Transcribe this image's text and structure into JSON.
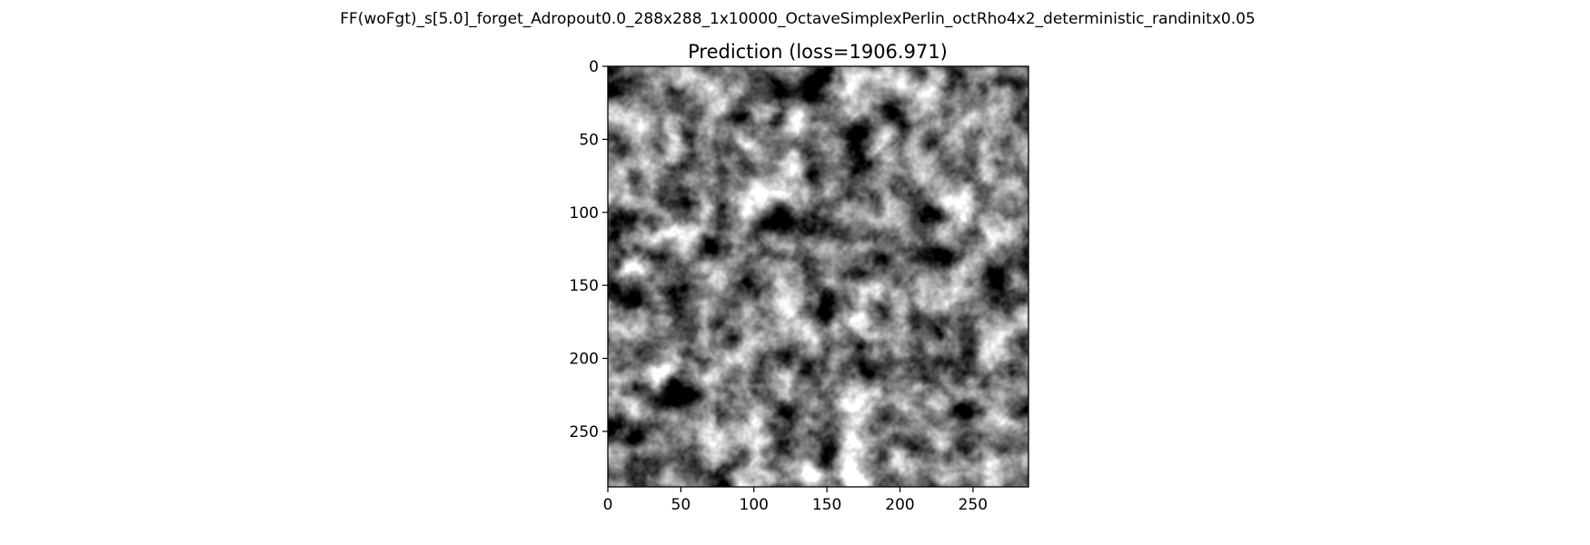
{
  "suptitle": "FF(woFgt)_s[5.0]_forget_Adropout0.0_288x288_1x10000_OctaveSimplexPerlin_octRho4x2_deterministic_randinitx0.05",
  "chart_data": {
    "type": "heatmap",
    "title": "Prediction (loss=1906.971)",
    "xlabel": "",
    "ylabel": "",
    "image_size": [
      288,
      288
    ],
    "colormap": "gray",
    "xlim": [
      0,
      288
    ],
    "ylim": [
      288,
      0
    ],
    "xticks": [
      0,
      50,
      100,
      150,
      200,
      250
    ],
    "yticks": [
      0,
      50,
      100,
      150,
      200,
      250
    ],
    "grid": false,
    "legend": "none"
  }
}
